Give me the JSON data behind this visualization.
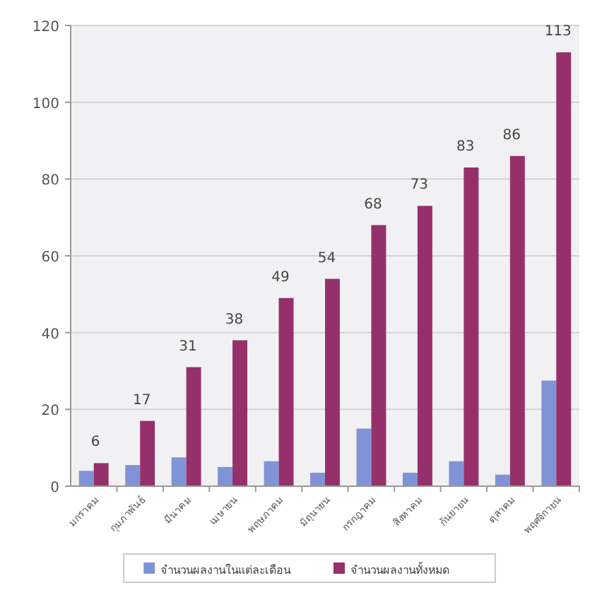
{
  "chart_data": {
    "type": "bar",
    "categories": [
      "มกราคม",
      "กุมภาพันธ์",
      "มีนาคม",
      "เมษายน",
      "พฤษภาคม",
      "มิถุนายน",
      "กรกฎาคม",
      "สิงหาคม",
      "กันยายน",
      "ตุลาคม",
      "พฤศจิกายน"
    ],
    "series": [
      {
        "name": "จำนวนผลงานในแต่ละเดือน",
        "color": "#8093d6",
        "values": [
          4,
          5.5,
          7.5,
          5,
          6.5,
          3.5,
          15,
          3.5,
          6.5,
          3,
          27.5
        ]
      },
      {
        "name": "จำนวนผลงานทั้งหมด",
        "color": "#96306a",
        "values": [
          6,
          17,
          31,
          38,
          49,
          54,
          68,
          73,
          83,
          86,
          113
        ],
        "value_labels": [
          "6",
          "17",
          "31",
          "38",
          "49",
          "54",
          "68",
          "73",
          "83",
          "86",
          "113"
        ]
      }
    ],
    "ylim": [
      0,
      120
    ],
    "yticks": [
      0,
      20,
      40,
      60,
      80,
      100,
      120
    ],
    "grid": "y",
    "legend": "bottom"
  }
}
